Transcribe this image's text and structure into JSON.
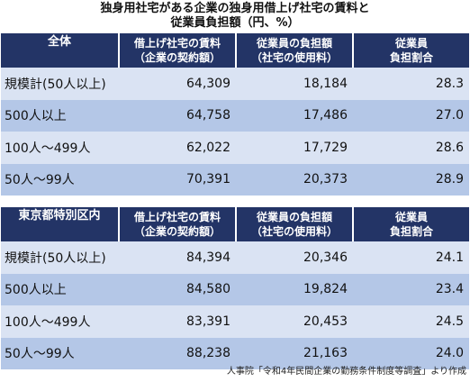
{
  "title": {
    "line1": "独身用社宅がある企業の独身用借上げ社宅の賃料と",
    "line2": "従業員負担額（円、%）"
  },
  "columns": {
    "rent": "借上げ社宅の賃料\n（企業の契約額）",
    "burden": "従業員の負担額\n（社宅の使用料）",
    "ratio": "従業員\n負担割合"
  },
  "tables": [
    {
      "group": "全体",
      "rows": [
        {
          "label": "規模計(50人以上)",
          "rent": "64,309",
          "burden": "18,184",
          "ratio": "28.3"
        },
        {
          "label": "500人以上",
          "rent": "64,758",
          "burden": "17,486",
          "ratio": "27.0"
        },
        {
          "label": "100人～499人",
          "rent": "62,022",
          "burden": "17,729",
          "ratio": "28.6"
        },
        {
          "label": "50人～99人",
          "rent": "70,391",
          "burden": "20,373",
          "ratio": "28.9"
        }
      ]
    },
    {
      "group": "東京都特別区内",
      "rows": [
        {
          "label": "規模計(50人以上)",
          "rent": "84,394",
          "burden": "20,346",
          "ratio": "24.1"
        },
        {
          "label": "500人以上",
          "rent": "84,580",
          "burden": "19,824",
          "ratio": "23.4"
        },
        {
          "label": "100人～499人",
          "rent": "83,391",
          "burden": "20,453",
          "ratio": "24.5"
        },
        {
          "label": "50人～99人",
          "rent": "88,238",
          "burden": "21,163",
          "ratio": "24.0"
        }
      ]
    }
  ],
  "source": "人事院「令和4年民間企業の勤務条件制度等調査」より作成"
}
